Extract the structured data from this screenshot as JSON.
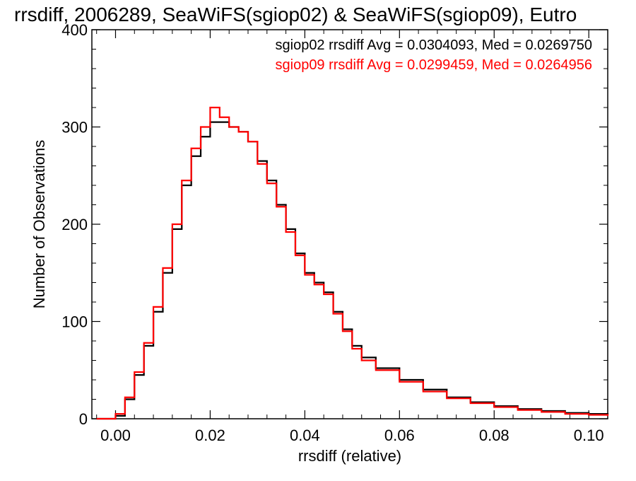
{
  "chart_data": {
    "type": "line",
    "step": true,
    "title": "rrsdiff, 2006289, SeaWiFS(sgiop02) & SeaWiFS(sgiop09), Eutro",
    "xlabel": "rrsdiff (relative)",
    "ylabel": "Number of Observations",
    "xlim": [
      -0.005,
      0.104
    ],
    "ylim": [
      0,
      400
    ],
    "x_ticks": [
      0.0,
      0.02,
      0.04,
      0.06,
      0.08,
      0.1
    ],
    "x_tick_labels": [
      "0.00",
      "0.02",
      "0.04",
      "0.06",
      "0.08",
      "0.10"
    ],
    "y_ticks": [
      0,
      100,
      200,
      300,
      400
    ],
    "y_tick_labels": [
      "0",
      "100",
      "200",
      "300",
      "400"
    ],
    "grid": false,
    "legend_position": "top-right",
    "x": [
      -0.004,
      0.0,
      0.002,
      0.004,
      0.006,
      0.008,
      0.01,
      0.012,
      0.014,
      0.016,
      0.018,
      0.02,
      0.022,
      0.024,
      0.026,
      0.028,
      0.03,
      0.032,
      0.034,
      0.036,
      0.038,
      0.04,
      0.042,
      0.044,
      0.046,
      0.048,
      0.05,
      0.052,
      0.055,
      0.06,
      0.065,
      0.07,
      0.075,
      0.08,
      0.085,
      0.09,
      0.095,
      0.1,
      0.104
    ],
    "series": [
      {
        "name": "sgiop02 rrsdiff Avg = 0.0304093, Med = 0.0269750",
        "color": "#000000",
        "values": [
          0,
          3,
          20,
          45,
          75,
          110,
          150,
          195,
          240,
          270,
          290,
          305,
          305,
          300,
          295,
          285,
          265,
          245,
          220,
          195,
          170,
          150,
          140,
          130,
          110,
          92,
          75,
          63,
          52,
          40,
          30,
          22,
          17,
          13,
          10,
          8,
          6,
          5,
          4
        ]
      },
      {
        "name": "sgiop09 rrsdiff Avg = 0.0299459, Med = 0.0264956",
        "color": "#ff0000",
        "values": [
          0,
          5,
          22,
          48,
          78,
          115,
          155,
          200,
          245,
          278,
          300,
          320,
          310,
          300,
          295,
          285,
          262,
          242,
          218,
          192,
          168,
          148,
          138,
          128,
          108,
          90,
          72,
          60,
          50,
          38,
          28,
          21,
          16,
          12,
          9,
          7,
          5,
          4,
          3
        ]
      }
    ]
  }
}
